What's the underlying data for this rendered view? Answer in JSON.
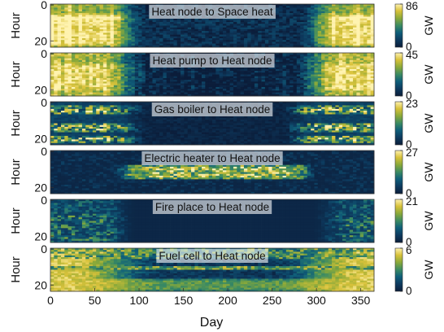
{
  "chart_data": {
    "type": "heatmap",
    "xlabel": "Day",
    "ylabel": "Hour",
    "colorbar_label": "GW",
    "xlim": [
      0,
      365
    ],
    "ylim": [
      0,
      23
    ],
    "x_ticks": [
      0,
      50,
      100,
      150,
      200,
      250,
      300,
      350
    ],
    "y_ticks": [
      0,
      20
    ],
    "colormap": [
      "#0b1d3a",
      "#0d3a5e",
      "#0f5f7a",
      "#3a8a63",
      "#8aa93a",
      "#d9c23a",
      "#fff3b0"
    ],
    "panels": [
      {
        "title": "Heat node to Space heat",
        "cbar_max": 86,
        "cbar_ticks": [
          0,
          86
        ],
        "profile": "space_heat"
      },
      {
        "title": "Heat pump to Heat node",
        "cbar_max": 45,
        "cbar_ticks": [
          0,
          45
        ],
        "profile": "heat_pump"
      },
      {
        "title": "Gas boiler to Heat node",
        "cbar_max": 23,
        "cbar_ticks": [
          0,
          23
        ],
        "profile": "gas_boiler"
      },
      {
        "title": "Electric heater to Heat node",
        "cbar_max": 27,
        "cbar_ticks": [
          0,
          27
        ],
        "profile": "electric_heater"
      },
      {
        "title": "Fire place to Heat node",
        "cbar_max": 21,
        "cbar_ticks": [
          0,
          21
        ],
        "profile": "fire_place"
      },
      {
        "title": "Fuel cell to Heat node",
        "cbar_max": 6,
        "cbar_ticks": [
          0,
          6
        ],
        "profile": "fuel_cell"
      }
    ]
  }
}
